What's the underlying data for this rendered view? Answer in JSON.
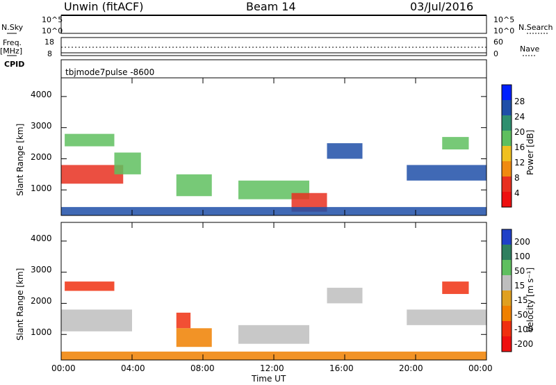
{
  "header": {
    "site": "Unwin (fitACF)",
    "beam": "Beam 14",
    "date": "03/Jul/2016"
  },
  "params": {
    "nsky_label": "N.Sky",
    "nsky_ticks": [
      "10^5",
      "10^0"
    ],
    "nsky_ticks_right": [
      "10^5",
      "10^0"
    ],
    "nsearch_label": "N.Search",
    "freq_label": "Freq.",
    "freq_unit": "[MHz]",
    "freq_ticks": [
      "18",
      "8"
    ],
    "nave_ticks": [
      "60",
      "0"
    ],
    "nave_label": "Nave",
    "cpid_label": "CPID",
    "cpid_value": "tbjmode7pulse  -8600"
  },
  "colors": {
    "power": [
      "#0020ff",
      "#1f4fa8",
      "#2f8f6f",
      "#5fbf5f",
      "#f0c020",
      "#f08a10",
      "#e83020",
      "#ee1010"
    ],
    "velocity": [
      "#2040c8",
      "#2f7f5f",
      "#5fbf5f",
      "#bebebe",
      "#e0a020",
      "#f08000",
      "#f03010",
      "#ee1010"
    ]
  },
  "chart_data": [
    {
      "type": "heatmap",
      "title": "",
      "ylabel": "Slant Range [km]",
      "xlabel": "",
      "x_ticks": [
        "00:00",
        "04:00",
        "08:00",
        "12:00",
        "16:00",
        "20:00",
        "00:00"
      ],
      "y_ticks": [
        "4000",
        "3000",
        "2000",
        "1000"
      ],
      "ylim": [
        180,
        4600
      ],
      "xlim_hours": [
        0,
        24
      ],
      "colorbar": {
        "label": "Power [dB]",
        "ticks": [
          "28",
          "24",
          "20",
          "16",
          "12",
          "8",
          "4"
        ]
      },
      "regions": [
        {
          "t0": 0.0,
          "t1": 3.5,
          "r0": 1200,
          "r1": 1800,
          "level": "high"
        },
        {
          "t0": 0.2,
          "t1": 3.0,
          "r0": 2400,
          "r1": 2800,
          "level": "mid"
        },
        {
          "t0": 3.0,
          "t1": 4.5,
          "r0": 1500,
          "r1": 2200,
          "level": "mid"
        },
        {
          "t0": 6.5,
          "t1": 8.5,
          "r0": 800,
          "r1": 1500,
          "level": "mid"
        },
        {
          "t0": 10.0,
          "t1": 14.0,
          "r0": 700,
          "r1": 1300,
          "level": "mid"
        },
        {
          "t0": 13.0,
          "t1": 15.0,
          "r0": 300,
          "r1": 900,
          "level": "high"
        },
        {
          "t0": 15.0,
          "t1": 17.0,
          "r0": 2000,
          "r1": 2500,
          "level": "low"
        },
        {
          "t0": 19.5,
          "t1": 24.0,
          "r0": 1300,
          "r1": 1800,
          "level": "low"
        },
        {
          "t0": 21.5,
          "t1": 23.0,
          "r0": 2300,
          "r1": 2700,
          "level": "mid"
        },
        {
          "t0": 0.0,
          "t1": 24.0,
          "r0": 180,
          "r1": 450,
          "level": "low"
        }
      ]
    },
    {
      "type": "heatmap",
      "title": "",
      "ylabel": "Slant Range [km]",
      "xlabel": "Time UT",
      "x_ticks": [
        "00:00",
        "04:00",
        "08:00",
        "12:00",
        "16:00",
        "20:00",
        "00:00"
      ],
      "y_ticks": [
        "4000",
        "3000",
        "2000",
        "1000"
      ],
      "ylim": [
        180,
        4600
      ],
      "xlim_hours": [
        0,
        24
      ],
      "colorbar": {
        "label": "Velocity [m s⁻¹]",
        "ticks": [
          "200",
          "100",
          "50",
          "15",
          "-15",
          "-50",
          "-100",
          "-200"
        ]
      },
      "regions": [
        {
          "t0": 0.0,
          "t1": 4.0,
          "r0": 1100,
          "r1": 1800,
          "level": "grey"
        },
        {
          "t0": 0.2,
          "t1": 3.0,
          "r0": 2400,
          "r1": 2700,
          "level": "red"
        },
        {
          "t0": 6.5,
          "t1": 7.3,
          "r0": 1200,
          "r1": 1700,
          "level": "red"
        },
        {
          "t0": 6.5,
          "t1": 8.5,
          "r0": 600,
          "r1": 1200,
          "level": "orange"
        },
        {
          "t0": 10.0,
          "t1": 14.0,
          "r0": 700,
          "r1": 1300,
          "level": "grey"
        },
        {
          "t0": 15.0,
          "t1": 17.0,
          "r0": 2000,
          "r1": 2500,
          "level": "grey"
        },
        {
          "t0": 19.5,
          "t1": 24.0,
          "r0": 1300,
          "r1": 1800,
          "level": "grey"
        },
        {
          "t0": 21.5,
          "t1": 23.0,
          "r0": 2300,
          "r1": 2700,
          "level": "red"
        },
        {
          "t0": 0.0,
          "t1": 24.0,
          "r0": 180,
          "r1": 450,
          "level": "orange"
        }
      ]
    }
  ]
}
